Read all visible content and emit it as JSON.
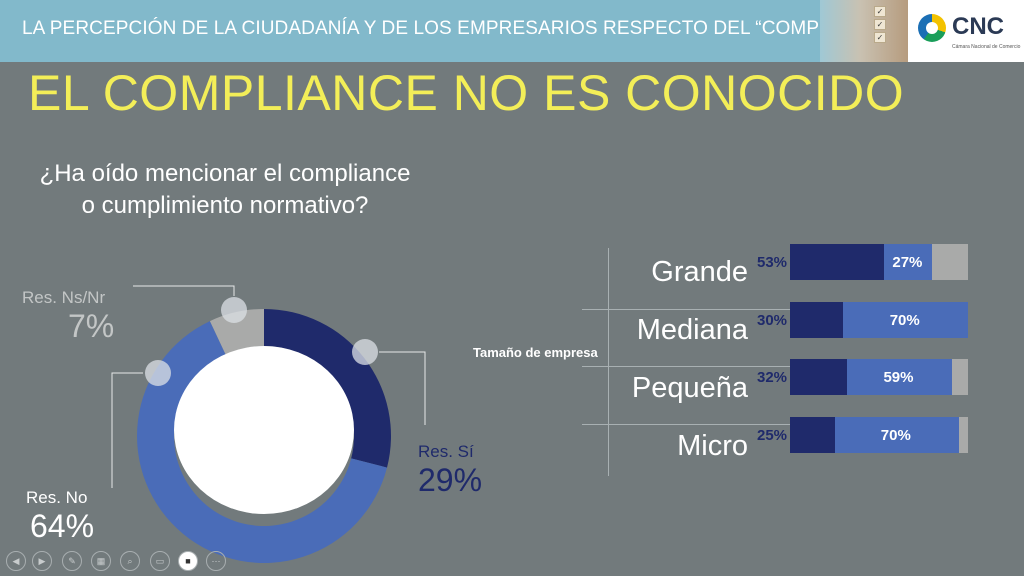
{
  "header": {
    "text": "LA PERCEPCIÓN DE LA CIUDADANÍA Y DE LOS EMPRESARIOS RESPECTO DEL “COMPLIANCE”"
  },
  "logo": {
    "text": "CNC",
    "subtitle": "Cámara Nacional de Comercio"
  },
  "title": "EL COMPLIANCE NO ES CONOCIDO",
  "question": {
    "line1": "¿Ha oído mencionar el compliance",
    "line2": "o cumplimiento normativo?"
  },
  "colors": {
    "dark_blue": "#1f2a6b",
    "mid_blue": "#4a6cb8",
    "gray": "#a9aaa9",
    "title_yellow": "#f3ee58",
    "background": "#727a7c"
  },
  "chart_data": [
    {
      "type": "pie",
      "donut": true,
      "slices": [
        {
          "label": "Res. Sí",
          "value": 29,
          "display": "29%",
          "color": "#1f2a6b"
        },
        {
          "label": "Res. No",
          "value": 64,
          "display": "64%",
          "color": "#4a6cb8"
        },
        {
          "label": "Res. Ns/Nr",
          "value": 7,
          "display": "7%",
          "color": "#a9aaa9"
        }
      ]
    },
    {
      "type": "bar",
      "orientation": "horizontal",
      "stacked": true,
      "ylabel": "Tamaño de empresa",
      "categories": [
        "Grande",
        "Mediana",
        "Pequeña",
        "Micro"
      ],
      "series": [
        {
          "values": [
            53,
            30,
            32,
            25
          ],
          "labels": [
            "53%",
            "30%",
            "32%",
            "25%"
          ],
          "color": "#1f2a6b"
        },
        {
          "values": [
            27,
            70,
            59,
            70
          ],
          "labels": [
            "27%",
            "70%",
            "59%",
            "70%"
          ],
          "color": "#4a6cb8"
        },
        {
          "values": [
            20,
            0,
            9,
            5
          ],
          "color": "#a9aaa9"
        }
      ]
    }
  ],
  "toolbar": {
    "buttons": [
      {
        "icon": "prev-icon",
        "glyph": "◀"
      },
      {
        "icon": "next-icon",
        "glyph": "▶"
      },
      {
        "icon": "pen-icon",
        "glyph": "✎"
      },
      {
        "icon": "slides-icon",
        "glyph": "▦"
      },
      {
        "icon": "zoom-icon",
        "glyph": "⌕"
      },
      {
        "icon": "subtitles-icon",
        "glyph": "▭"
      },
      {
        "icon": "camera-icon",
        "glyph": "■"
      },
      {
        "icon": "more-icon",
        "glyph": "⋯"
      }
    ]
  }
}
